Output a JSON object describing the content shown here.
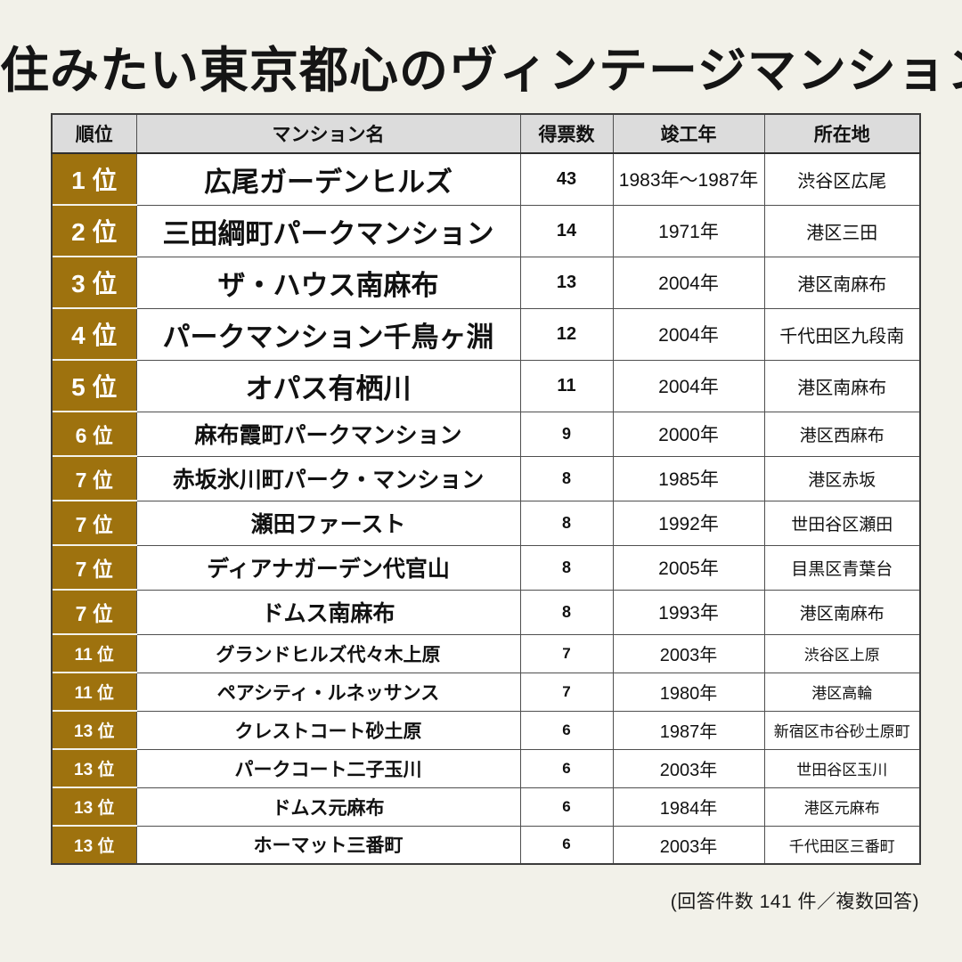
{
  "page": {
    "title": "住みたい東京都心のヴィンテージマンションは?",
    "footnote": "(回答件数 141 件／複数回答)"
  },
  "colors": {
    "background": "#f2f1e9",
    "rank_cell_gold": "#9e720e",
    "header_gray": "#dcdcdc",
    "border_dark": "#4f4f4f",
    "rank_text": "#ffffff"
  },
  "chart_data": {
    "type": "table",
    "title": "住みたい東京都心のヴィンテージマンションは?",
    "footnote": "(回答件数 141 件／複数回答)",
    "response_count": 141,
    "columns": [
      "順位",
      "マンション名",
      "得票数",
      "竣工年",
      "所在地"
    ],
    "rows": [
      {
        "rank": "1 位",
        "name": "広尾ガーデンヒルズ",
        "votes": "43",
        "year": "1983年～1987年",
        "location": "渋谷区広尾",
        "tier": 1
      },
      {
        "rank": "2 位",
        "name": "三田綱町パークマンション",
        "votes": "14",
        "year": "1971年",
        "location": "港区三田",
        "tier": 1
      },
      {
        "rank": "3 位",
        "name": "ザ・ハウス南麻布",
        "votes": "13",
        "year": "2004年",
        "location": "港区南麻布",
        "tier": 1
      },
      {
        "rank": "4 位",
        "name": "パークマンション千鳥ヶ淵",
        "votes": "12",
        "year": "2004年",
        "location": "千代田区九段南",
        "tier": 1
      },
      {
        "rank": "5 位",
        "name": "オパス有栖川",
        "votes": "11",
        "year": "2004年",
        "location": "港区南麻布",
        "tier": 1
      },
      {
        "rank": "6 位",
        "name": "麻布霞町パークマンション",
        "votes": "9",
        "year": "2000年",
        "location": "港区西麻布",
        "tier": 2
      },
      {
        "rank": "7 位",
        "name": "赤坂氷川町パーク・マンション",
        "votes": "8",
        "year": "1985年",
        "location": "港区赤坂",
        "tier": 2
      },
      {
        "rank": "7 位",
        "name": "瀬田ファースト",
        "votes": "8",
        "year": "1992年",
        "location": "世田谷区瀬田",
        "tier": 2
      },
      {
        "rank": "7 位",
        "name": "ディアナガーデン代官山",
        "votes": "8",
        "year": "2005年",
        "location": "目黒区青葉台",
        "tier": 2
      },
      {
        "rank": "7 位",
        "name": "ドムス南麻布",
        "votes": "8",
        "year": "1993年",
        "location": "港区南麻布",
        "tier": 2
      },
      {
        "rank": "11 位",
        "name": "グランドヒルズ代々木上原",
        "votes": "7",
        "year": "2003年",
        "location": "渋谷区上原",
        "tier": 3
      },
      {
        "rank": "11 位",
        "name": "ペアシティ・ルネッサンス",
        "votes": "7",
        "year": "1980年",
        "location": "港区高輪",
        "tier": 3
      },
      {
        "rank": "13 位",
        "name": "クレストコート砂土原",
        "votes": "6",
        "year": "1987年",
        "location": "新宿区市谷砂土原町",
        "tier": 3
      },
      {
        "rank": "13 位",
        "name": "パークコート二子玉川",
        "votes": "6",
        "year": "2003年",
        "location": "世田谷区玉川",
        "tier": 3
      },
      {
        "rank": "13 位",
        "name": "ドムス元麻布",
        "votes": "6",
        "year": "1984年",
        "location": "港区元麻布",
        "tier": 3
      },
      {
        "rank": "13 位",
        "name": "ホーマット三番町",
        "votes": "6",
        "year": "2003年",
        "location": "千代田区三番町",
        "tier": 3
      }
    ]
  }
}
